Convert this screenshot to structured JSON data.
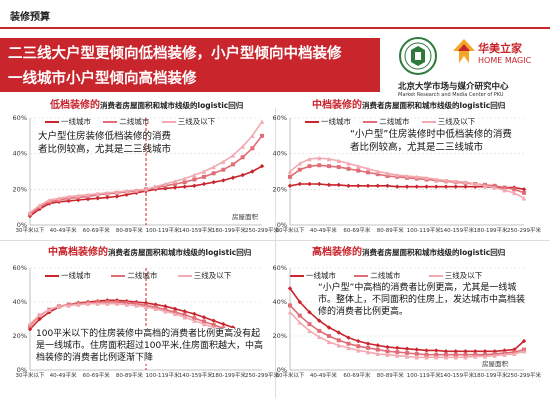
{
  "header": {
    "section_title": "装修预算"
  },
  "banner": {
    "line1": "二三线大户型更倾向低档装修，小户型倾向中档装修",
    "line2": "一线城市小户型倾向高档装修"
  },
  "logos": {
    "home_magic_cn": "华美立家",
    "home_magic_en": "HOME MAGIC",
    "pku_cn": "北京大学市场与媒介研究中心",
    "pku_en_1": "Market Research and Media Center of PKU",
    "pku_en_2": ""
  },
  "colors": {
    "brand": "#c9252d",
    "tier1": "#c9252d",
    "tier2": "#e06c75",
    "tier3": "#f2a9b0"
  },
  "legend": {
    "tier1": "一线城市",
    "tier2": "二线城市",
    "tier3": "三线及以下"
  },
  "panels": [
    {
      "title_red": "低档装修的",
      "title_rest": "消费者房屋面积和城市线级的logistic回归",
      "annotation": "大户型住房装修低档装修的消费者比例较高，尤其是二三线城市",
      "xlabel": "房屋面积"
    },
    {
      "title_red": "中档装修的",
      "title_rest": "消费者房屋面积和城市线级的logistic回归",
      "annotation": "“小户型”住房装修时中低档装修的消费者比例较高，尤其是二三线城市",
      "xlabel": ""
    },
    {
      "title_red": "中高档装修的",
      "title_rest": "消费者房屋面积和城市线级的logistic回归",
      "annotation": "100平米以下的住房装修中高档的消费者比例更高没有起是一线城市。住房面积超过100平米,住房面积越大，中高档装修的消费者比例逐渐下降",
      "xlabel": ""
    },
    {
      "title_red": "高档装修的",
      "title_rest": "消费者房屋面积和城市线级的logistic回归",
      "annotation": "“小户型”中高档的消费者比例更高，尤其是一线城市。整体上，不同面积的住房上，发达城市中高档装修的消费者比例更高。",
      "xlabel": "房屋面积"
    }
  ],
  "chart_data": [
    {
      "type": "line",
      "title": "低档装修的消费者房屋面积和城市线级的logistic回归",
      "categories": [
        "30平米以下",
        "40-49平米",
        "60-69平米",
        "80-89平米",
        "100-119平米",
        "140-159平米",
        "180-199平米",
        "250-299平米"
      ],
      "x": [
        0,
        1,
        2,
        3,
        4,
        5,
        6,
        7,
        8,
        9,
        10,
        11,
        12,
        13,
        14,
        15,
        16,
        17,
        18,
        19,
        20,
        21,
        22,
        23,
        24
      ],
      "ylim": [
        0,
        60
      ],
      "yticks": [
        0,
        20,
        40,
        60
      ],
      "yunit": "%",
      "xlabel": "房屋面积",
      "vline_index": 12,
      "series": [
        {
          "name": "一线城市",
          "values": [
            5,
            9,
            12,
            13,
            13.5,
            14,
            14.5,
            15,
            15.5,
            16,
            17,
            18,
            19,
            20,
            20.5,
            21,
            21.5,
            22,
            23,
            24,
            25,
            26.5,
            28,
            30,
            33
          ]
        },
        {
          "name": "二线城市",
          "values": [
            6,
            10,
            13,
            14,
            15,
            15.5,
            16,
            17,
            17.5,
            18,
            18.5,
            19,
            20,
            21,
            22,
            23,
            24,
            25.5,
            27,
            29,
            31,
            34,
            38,
            43,
            50
          ]
        },
        {
          "name": "三线及以下",
          "values": [
            7,
            11,
            14,
            15,
            16,
            16.5,
            17,
            17.5,
            18,
            18.5,
            19,
            19.5,
            20,
            21.5,
            23,
            24.5,
            26,
            28,
            30,
            32.5,
            35.5,
            39,
            44,
            50,
            58
          ]
        }
      ]
    },
    {
      "type": "line",
      "title": "中档装修的消费者房屋面积和城市线级的logistic回归",
      "categories": [
        "30平米以下",
        "40-49平米",
        "60-69平米",
        "80-89平米",
        "100-119平米",
        "140-159平米",
        "180-199平米",
        "250-299平米"
      ],
      "x": [
        0,
        1,
        2,
        3,
        4,
        5,
        6,
        7,
        8,
        9,
        10,
        11,
        12,
        13,
        14,
        15,
        16,
        17,
        18,
        19,
        20,
        21,
        22,
        23,
        24
      ],
      "ylim": [
        0,
        60
      ],
      "yticks": [
        0,
        20,
        40,
        60
      ],
      "yunit": "%",
      "series": [
        {
          "name": "一线城市",
          "values": [
            22,
            23,
            23,
            23,
            22.5,
            22.5,
            22,
            22,
            22,
            22,
            22,
            21.5,
            21.5,
            21.5,
            21.5,
            21.5,
            21.5,
            21.5,
            21.5,
            21.5,
            21.5,
            21,
            21,
            21,
            20
          ]
        },
        {
          "name": "二线城市",
          "values": [
            27,
            31,
            33,
            33.5,
            33,
            32.5,
            31.5,
            30.5,
            29.5,
            28.5,
            27.5,
            27,
            26.5,
            26,
            25.5,
            25,
            24.5,
            24,
            23.5,
            23,
            22.5,
            22,
            21,
            20,
            18
          ]
        },
        {
          "name": "三线及以下",
          "values": [
            30,
            34.5,
            37,
            37.5,
            37,
            36,
            34.5,
            33,
            31.5,
            30,
            29,
            28,
            27.5,
            27,
            26.5,
            25.5,
            25,
            24.5,
            24,
            23,
            22,
            21,
            19.5,
            18,
            15
          ]
        }
      ]
    },
    {
      "type": "line",
      "title": "中高档装修的消费者房屋面积和城市线级的logistic回归",
      "categories": [
        "30平米以下",
        "40-49平米",
        "60-69平米",
        "80-89平米",
        "100-119平米",
        "140-159平米",
        "180-199平米",
        "250-299平米"
      ],
      "x": [
        0,
        1,
        2,
        3,
        4,
        5,
        6,
        7,
        8,
        9,
        10,
        11,
        12,
        13,
        14,
        15,
        16,
        17,
        18,
        19,
        20,
        21,
        22,
        23,
        24
      ],
      "ylim": [
        0,
        60
      ],
      "yticks": [
        0,
        20,
        40,
        60
      ],
      "yunit": "%",
      "vline_index": 12,
      "series": [
        {
          "name": "一线城市",
          "values": [
            24,
            30,
            34,
            37,
            38.5,
            39.5,
            40,
            40.5,
            41,
            41,
            40.5,
            40,
            39.5,
            38.5,
            37.5,
            36,
            34.5,
            33,
            31,
            29,
            27,
            25,
            22,
            19,
            15
          ]
        },
        {
          "name": "二线城市",
          "values": [
            26,
            32,
            35.5,
            37.5,
            38.5,
            39,
            39.5,
            40,
            40,
            40,
            39.5,
            39,
            38,
            37,
            35.5,
            34,
            32.5,
            30.5,
            28.5,
            26.5,
            24.5,
            22,
            19.5,
            17,
            13
          ]
        },
        {
          "name": "三线及以下",
          "values": [
            27,
            32.5,
            35.5,
            37.5,
            38,
            38.5,
            39,
            39,
            39,
            39,
            38.5,
            38,
            37,
            36,
            34.5,
            33,
            31,
            29,
            27,
            25,
            23,
            20.5,
            18,
            15.5,
            12
          ]
        }
      ]
    },
    {
      "type": "line",
      "title": "高档装修的消费者房屋面积和城市线级的logistic回归",
      "categories": [
        "30平米以下",
        "40-49平米",
        "60-69平米",
        "80-89平米",
        "100-119平米",
        "140-159平米",
        "180-199平米",
        "250-299平米"
      ],
      "x": [
        0,
        1,
        2,
        3,
        4,
        5,
        6,
        7,
        8,
        9,
        10,
        11,
        12,
        13,
        14,
        15,
        16,
        17,
        18,
        19,
        20,
        21,
        22,
        23,
        24
      ],
      "ylim": [
        0,
        60
      ],
      "yticks": [
        0,
        20,
        40,
        60
      ],
      "yunit": "%",
      "xlabel": "房屋面积",
      "series": [
        {
          "name": "一线城市",
          "values": [
            48,
            40,
            34,
            29,
            25,
            22,
            19,
            17,
            15.5,
            14.5,
            13.5,
            13,
            12.5,
            12,
            11.5,
            11.5,
            11,
            11,
            11,
            11,
            11,
            11,
            11.5,
            12,
            17
          ]
        },
        {
          "name": "二线城市",
          "values": [
            38,
            32,
            27,
            23,
            20,
            17.5,
            15.5,
            14,
            13,
            12,
            11,
            10.5,
            10,
            9.5,
            9,
            9,
            9,
            9,
            9,
            9,
            9,
            9.5,
            10,
            10.5,
            12
          ]
        },
        {
          "name": "三线及以下",
          "values": [
            34,
            28,
            23,
            19.5,
            16.5,
            14.5,
            13,
            11.5,
            10.5,
            9.5,
            9,
            8.5,
            8,
            7.5,
            7.5,
            7.5,
            7.5,
            7.5,
            7.5,
            8,
            8,
            8.5,
            9,
            9.5,
            11
          ]
        }
      ]
    }
  ]
}
